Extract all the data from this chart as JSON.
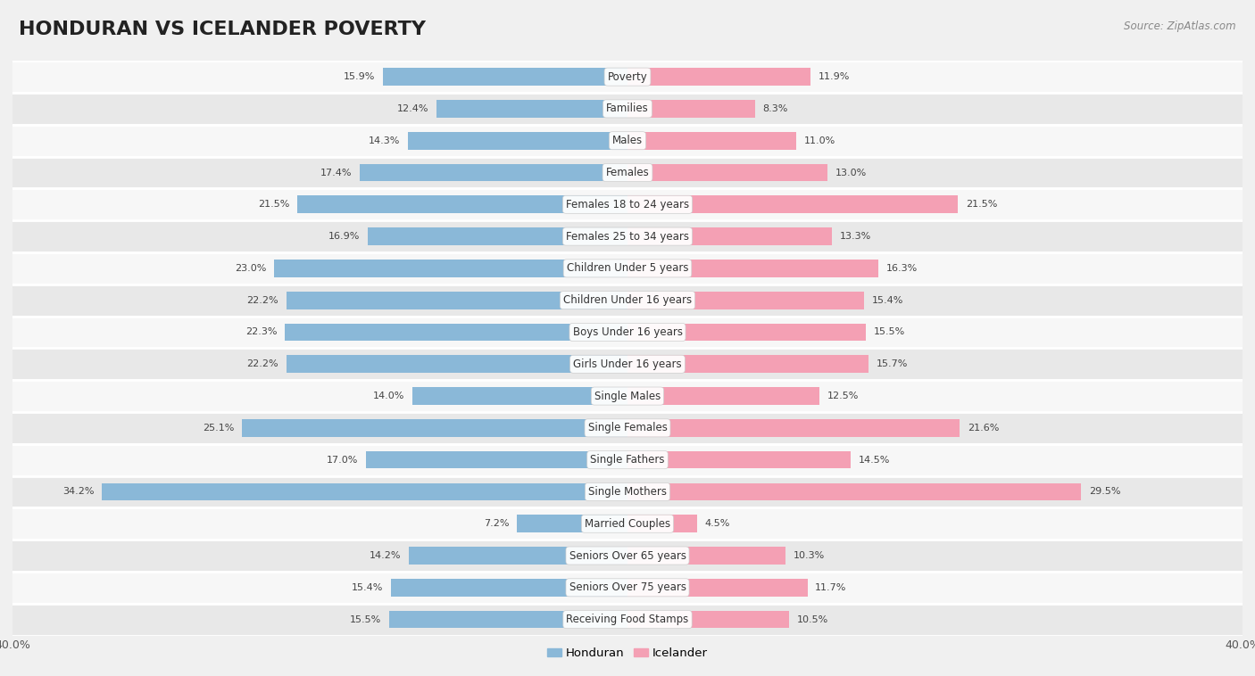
{
  "title": "HONDURAN VS ICELANDER POVERTY",
  "source": "Source: ZipAtlas.com",
  "categories": [
    "Poverty",
    "Families",
    "Males",
    "Females",
    "Females 18 to 24 years",
    "Females 25 to 34 years",
    "Children Under 5 years",
    "Children Under 16 years",
    "Boys Under 16 years",
    "Girls Under 16 years",
    "Single Males",
    "Single Females",
    "Single Fathers",
    "Single Mothers",
    "Married Couples",
    "Seniors Over 65 years",
    "Seniors Over 75 years",
    "Receiving Food Stamps"
  ],
  "honduran": [
    15.9,
    12.4,
    14.3,
    17.4,
    21.5,
    16.9,
    23.0,
    22.2,
    22.3,
    22.2,
    14.0,
    25.1,
    17.0,
    34.2,
    7.2,
    14.2,
    15.4,
    15.5
  ],
  "icelander": [
    11.9,
    8.3,
    11.0,
    13.0,
    21.5,
    13.3,
    16.3,
    15.4,
    15.5,
    15.7,
    12.5,
    21.6,
    14.5,
    29.5,
    4.5,
    10.3,
    11.7,
    10.5
  ],
  "honduran_color": "#8ab8d8",
  "icelander_color": "#f4a0b4",
  "bar_height": 0.55,
  "xlim": 40.0,
  "background_color": "#f0f0f0",
  "row_bg_light": "#f7f7f7",
  "row_bg_dark": "#e8e8e8",
  "title_fontsize": 16,
  "label_fontsize": 8.5,
  "value_fontsize": 8,
  "legend_fontsize": 9.5,
  "source_fontsize": 8.5
}
